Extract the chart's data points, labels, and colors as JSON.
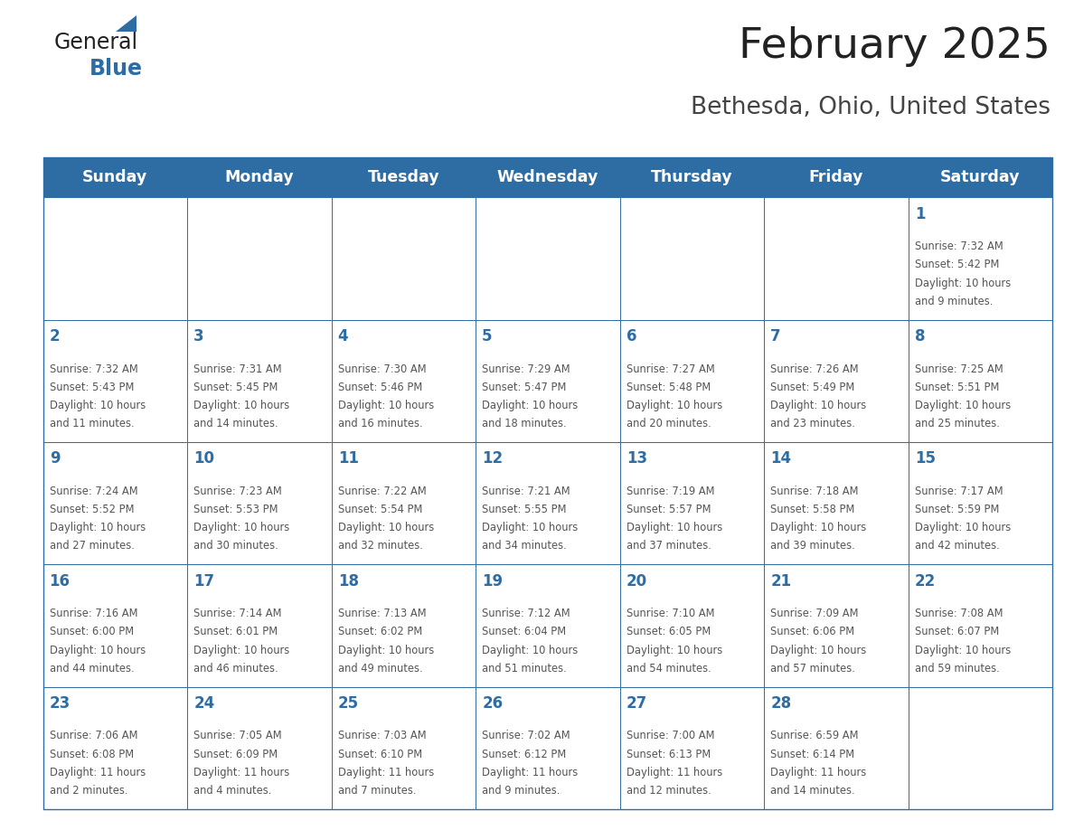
{
  "title": "February 2025",
  "subtitle": "Bethesda, Ohio, United States",
  "days_of_week": [
    "Sunday",
    "Monday",
    "Tuesday",
    "Wednesday",
    "Thursday",
    "Friday",
    "Saturday"
  ],
  "header_bg": "#2E6DA4",
  "header_text_color": "#FFFFFF",
  "cell_bg": "#FFFFFF",
  "cell_border_color": "#2E6DA4",
  "day_number_color": "#2E6DA4",
  "info_text_color": "#555555",
  "title_color": "#222222",
  "subtitle_color": "#444444",
  "logo_general_color": "#222222",
  "logo_blue_color": "#2E6DA4",
  "num_cols": 7,
  "num_rows": 5,
  "calendar_data": [
    {
      "day": 1,
      "col": 6,
      "row": 0,
      "sunrise": "7:32 AM",
      "sunset": "5:42 PM",
      "daylight_h": "10 hours",
      "daylight_m": "9 minutes."
    },
    {
      "day": 2,
      "col": 0,
      "row": 1,
      "sunrise": "7:32 AM",
      "sunset": "5:43 PM",
      "daylight_h": "10 hours",
      "daylight_m": "11 minutes."
    },
    {
      "day": 3,
      "col": 1,
      "row": 1,
      "sunrise": "7:31 AM",
      "sunset": "5:45 PM",
      "daylight_h": "10 hours",
      "daylight_m": "14 minutes."
    },
    {
      "day": 4,
      "col": 2,
      "row": 1,
      "sunrise": "7:30 AM",
      "sunset": "5:46 PM",
      "daylight_h": "10 hours",
      "daylight_m": "16 minutes."
    },
    {
      "day": 5,
      "col": 3,
      "row": 1,
      "sunrise": "7:29 AM",
      "sunset": "5:47 PM",
      "daylight_h": "10 hours",
      "daylight_m": "18 minutes."
    },
    {
      "day": 6,
      "col": 4,
      "row": 1,
      "sunrise": "7:27 AM",
      "sunset": "5:48 PM",
      "daylight_h": "10 hours",
      "daylight_m": "20 minutes."
    },
    {
      "day": 7,
      "col": 5,
      "row": 1,
      "sunrise": "7:26 AM",
      "sunset": "5:49 PM",
      "daylight_h": "10 hours",
      "daylight_m": "23 minutes."
    },
    {
      "day": 8,
      "col": 6,
      "row": 1,
      "sunrise": "7:25 AM",
      "sunset": "5:51 PM",
      "daylight_h": "10 hours",
      "daylight_m": "25 minutes."
    },
    {
      "day": 9,
      "col": 0,
      "row": 2,
      "sunrise": "7:24 AM",
      "sunset": "5:52 PM",
      "daylight_h": "10 hours",
      "daylight_m": "27 minutes."
    },
    {
      "day": 10,
      "col": 1,
      "row": 2,
      "sunrise": "7:23 AM",
      "sunset": "5:53 PM",
      "daylight_h": "10 hours",
      "daylight_m": "30 minutes."
    },
    {
      "day": 11,
      "col": 2,
      "row": 2,
      "sunrise": "7:22 AM",
      "sunset": "5:54 PM",
      "daylight_h": "10 hours",
      "daylight_m": "32 minutes."
    },
    {
      "day": 12,
      "col": 3,
      "row": 2,
      "sunrise": "7:21 AM",
      "sunset": "5:55 PM",
      "daylight_h": "10 hours",
      "daylight_m": "34 minutes."
    },
    {
      "day": 13,
      "col": 4,
      "row": 2,
      "sunrise": "7:19 AM",
      "sunset": "5:57 PM",
      "daylight_h": "10 hours",
      "daylight_m": "37 minutes."
    },
    {
      "day": 14,
      "col": 5,
      "row": 2,
      "sunrise": "7:18 AM",
      "sunset": "5:58 PM",
      "daylight_h": "10 hours",
      "daylight_m": "39 minutes."
    },
    {
      "day": 15,
      "col": 6,
      "row": 2,
      "sunrise": "7:17 AM",
      "sunset": "5:59 PM",
      "daylight_h": "10 hours",
      "daylight_m": "42 minutes."
    },
    {
      "day": 16,
      "col": 0,
      "row": 3,
      "sunrise": "7:16 AM",
      "sunset": "6:00 PM",
      "daylight_h": "10 hours",
      "daylight_m": "44 minutes."
    },
    {
      "day": 17,
      "col": 1,
      "row": 3,
      "sunrise": "7:14 AM",
      "sunset": "6:01 PM",
      "daylight_h": "10 hours",
      "daylight_m": "46 minutes."
    },
    {
      "day": 18,
      "col": 2,
      "row": 3,
      "sunrise": "7:13 AM",
      "sunset": "6:02 PM",
      "daylight_h": "10 hours",
      "daylight_m": "49 minutes."
    },
    {
      "day": 19,
      "col": 3,
      "row": 3,
      "sunrise": "7:12 AM",
      "sunset": "6:04 PM",
      "daylight_h": "10 hours",
      "daylight_m": "51 minutes."
    },
    {
      "day": 20,
      "col": 4,
      "row": 3,
      "sunrise": "7:10 AM",
      "sunset": "6:05 PM",
      "daylight_h": "10 hours",
      "daylight_m": "54 minutes."
    },
    {
      "day": 21,
      "col": 5,
      "row": 3,
      "sunrise": "7:09 AM",
      "sunset": "6:06 PM",
      "daylight_h": "10 hours",
      "daylight_m": "57 minutes."
    },
    {
      "day": 22,
      "col": 6,
      "row": 3,
      "sunrise": "7:08 AM",
      "sunset": "6:07 PM",
      "daylight_h": "10 hours",
      "daylight_m": "59 minutes."
    },
    {
      "day": 23,
      "col": 0,
      "row": 4,
      "sunrise": "7:06 AM",
      "sunset": "6:08 PM",
      "daylight_h": "11 hours",
      "daylight_m": "2 minutes."
    },
    {
      "day": 24,
      "col": 1,
      "row": 4,
      "sunrise": "7:05 AM",
      "sunset": "6:09 PM",
      "daylight_h": "11 hours",
      "daylight_m": "4 minutes."
    },
    {
      "day": 25,
      "col": 2,
      "row": 4,
      "sunrise": "7:03 AM",
      "sunset": "6:10 PM",
      "daylight_h": "11 hours",
      "daylight_m": "7 minutes."
    },
    {
      "day": 26,
      "col": 3,
      "row": 4,
      "sunrise": "7:02 AM",
      "sunset": "6:12 PM",
      "daylight_h": "11 hours",
      "daylight_m": "9 minutes."
    },
    {
      "day": 27,
      "col": 4,
      "row": 4,
      "sunrise": "7:00 AM",
      "sunset": "6:13 PM",
      "daylight_h": "11 hours",
      "daylight_m": "12 minutes."
    },
    {
      "day": 28,
      "col": 5,
      "row": 4,
      "sunrise": "6:59 AM",
      "sunset": "6:14 PM",
      "daylight_h": "11 hours",
      "daylight_m": "14 minutes."
    }
  ]
}
